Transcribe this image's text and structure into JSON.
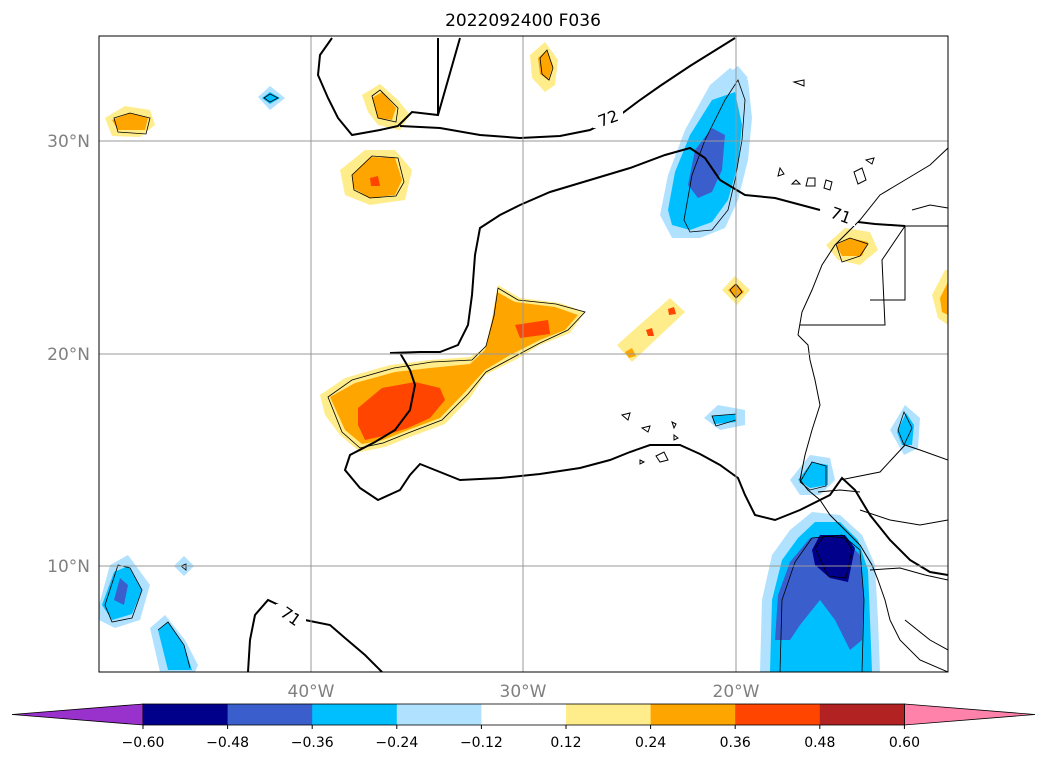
{
  "title": "2022092400 F036",
  "map": {
    "lat_labels": [
      "30°N",
      "20°N",
      "10°N"
    ],
    "lon_labels": [
      "40°W",
      "30°W",
      "20°W"
    ],
    "contour_labels": [
      "72",
      "71",
      "71"
    ]
  },
  "colorbar": {
    "ticks": [
      "−0.60",
      "−0.48",
      "−0.36",
      "−0.24",
      "−0.12",
      "0.12",
      "0.24",
      "0.36",
      "0.48",
      "0.60"
    ],
    "colors": [
      "#9932cc",
      "#00008b",
      "#3a5fcd",
      "#00bfff",
      "#b0e2ff",
      "#ffffff",
      "#ffec8b",
      "#ffa500",
      "#ff4500",
      "#b22222",
      "#ff82ab"
    ]
  }
}
